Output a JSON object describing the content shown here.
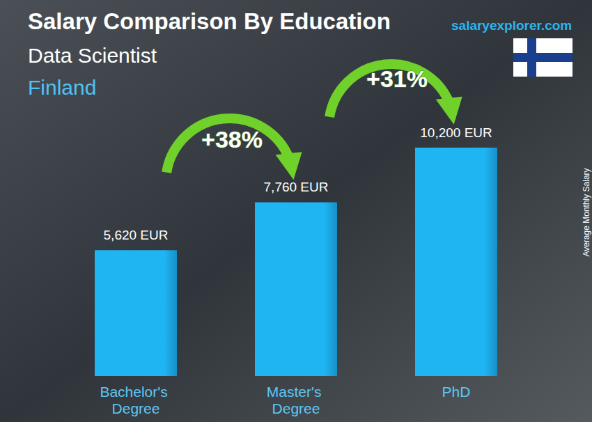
{
  "chart_data": {
    "type": "bar",
    "title": "Salary Comparison By Education",
    "subtitle": "Data Scientist",
    "location": "Finland",
    "source": "salaryexplorer.com",
    "y_label": "Average Monthly Salary",
    "categories": [
      "Bachelor's Degree",
      "Master's Degree",
      "PhD"
    ],
    "values": [
      5620,
      7760,
      10200
    ],
    "value_labels": [
      "5,620 EUR",
      "7,760 EUR",
      "10,200 EUR"
    ],
    "data_labels": true,
    "annotations": [
      "+38%",
      "+31%"
    ],
    "color": "#1fb4f2",
    "ylim": [
      0,
      12000
    ],
    "grid": false,
    "tick_labels": "x"
  }
}
